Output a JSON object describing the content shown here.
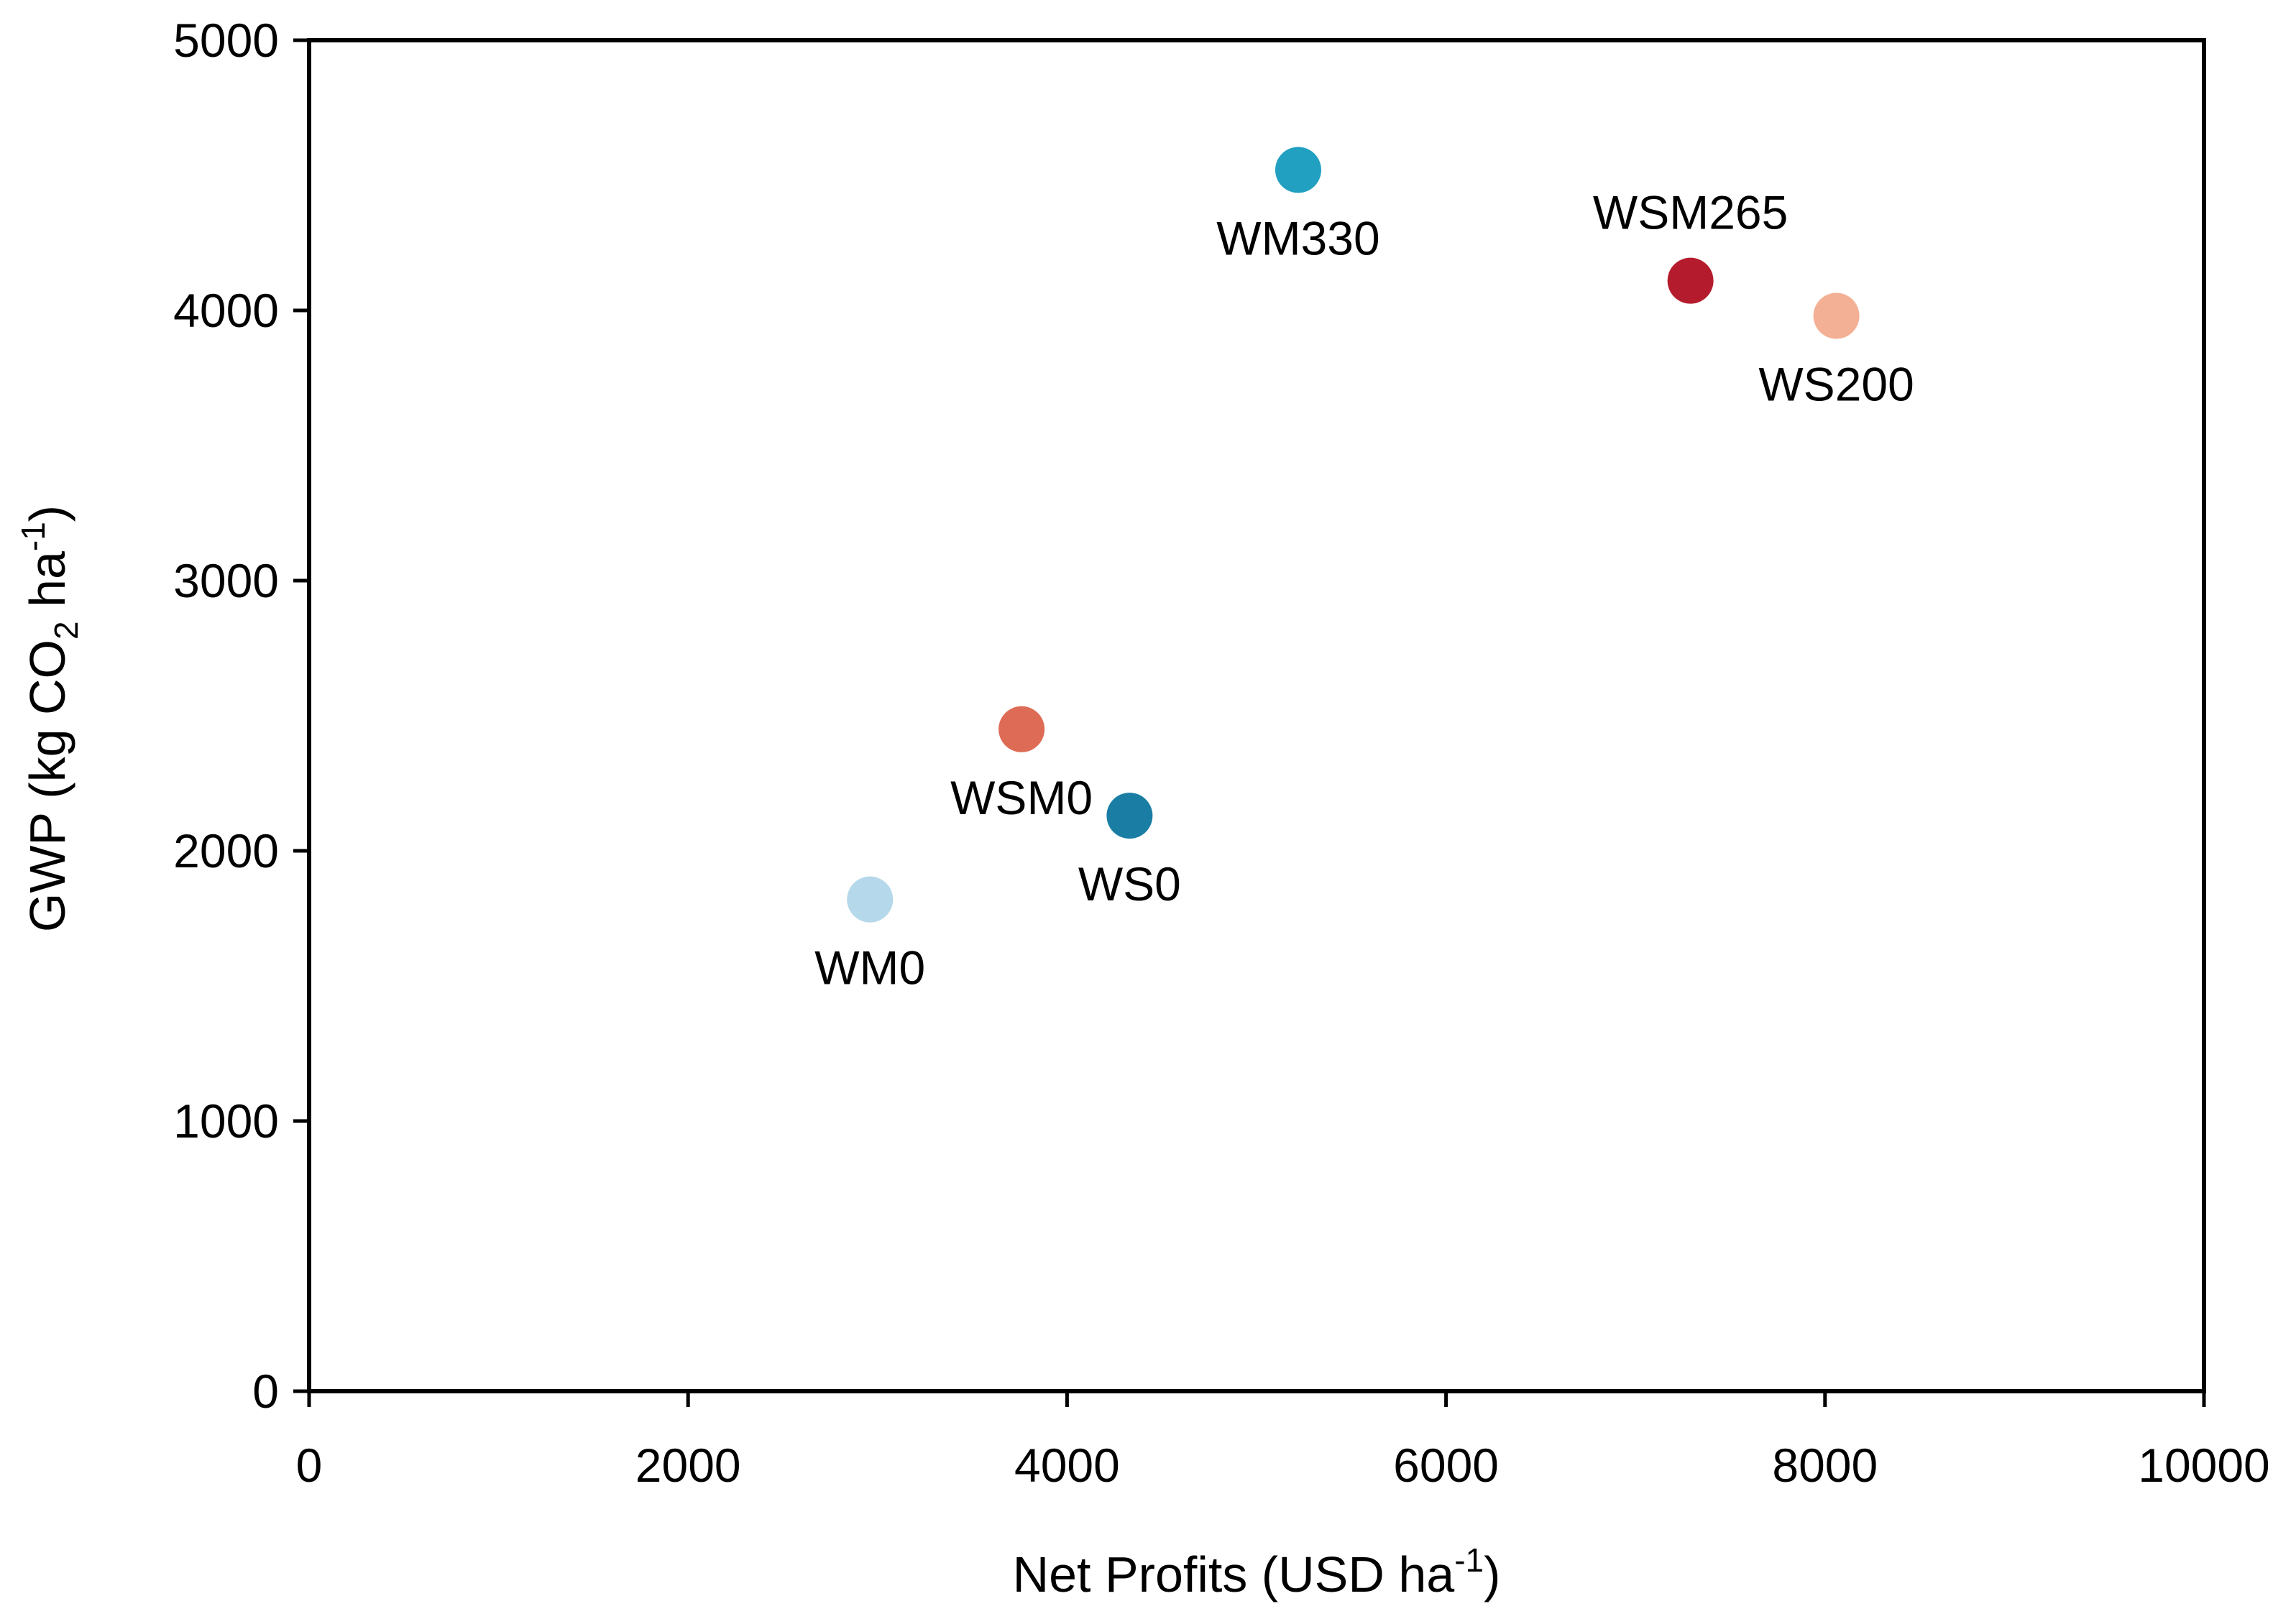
{
  "chart_data": {
    "type": "scatter",
    "title": "",
    "xlabel": "Net Profits (USD ha",
    "xlabel_sup": "-1",
    "xlabel_end": ")",
    "ylabel": "GWP  (kg CO",
    "ylabel_sub": "2",
    "ylabel_mid": " ha",
    "ylabel_sup": "-1",
    "ylabel_end": ")",
    "xlim": [
      0,
      10000
    ],
    "ylim": [
      0,
      5000
    ],
    "xticks": [
      0,
      2000,
      4000,
      6000,
      8000,
      10000
    ],
    "yticks": [
      0,
      1000,
      2000,
      3000,
      4000,
      5000
    ],
    "xtick_labels": [
      "0",
      "2000",
      "4000",
      "6000",
      "8000",
      "10000"
    ],
    "ytick_labels": [
      "0",
      "1000",
      "2000",
      "3000",
      "4000",
      "5000"
    ],
    "grid": false,
    "points": [
      {
        "label": "WM330",
        "x": 5220,
        "y": 4520,
        "color": "#22a0c2",
        "label_pos": "below"
      },
      {
        "label": "WSM265",
        "x": 7290,
        "y": 4110,
        "color": "#b41c2e",
        "label_pos": "above"
      },
      {
        "label": "WS200",
        "x": 8060,
        "y": 3980,
        "color": "#f4b095",
        "label_pos": "below"
      },
      {
        "label": "WSM0",
        "x": 3760,
        "y": 2450,
        "color": "#de6b55",
        "label_pos": "below"
      },
      {
        "label": "WS0",
        "x": 4330,
        "y": 2130,
        "color": "#1a7ea4",
        "label_pos": "below"
      },
      {
        "label": "WM0",
        "x": 2960,
        "y": 1820,
        "color": "#b5d8ea",
        "label_pos": "below"
      }
    ]
  }
}
